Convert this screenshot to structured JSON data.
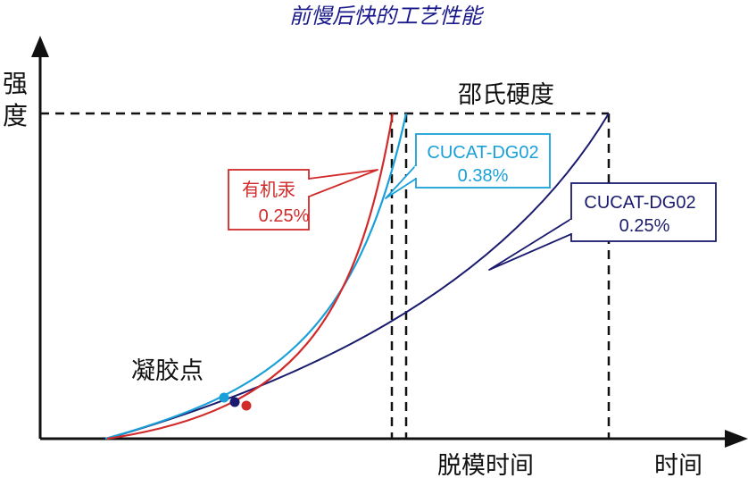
{
  "title": "前慢后快的工艺性能",
  "labels": {
    "y_axis": "强度",
    "x_axis": "时间",
    "brinell_hardness": "邵氏硬度",
    "gel_point": "凝胶点",
    "demold_time": "脱模时间"
  },
  "callouts": [
    {
      "line1": "有机汞",
      "line2": "0.25%",
      "color": "#d12a2a"
    },
    {
      "line1": "CUCAT-DG02",
      "line2": "0.38%",
      "color": "#1aa0d8"
    },
    {
      "line1": "CUCAT-DG02",
      "line2": "0.25%",
      "color": "#1a1a6e"
    }
  ],
  "colors": {
    "mercury": "#d12a2a",
    "cucat_038": "#1aa0d8",
    "cucat_025": "#1a1a6e",
    "axis": "#111111"
  }
}
